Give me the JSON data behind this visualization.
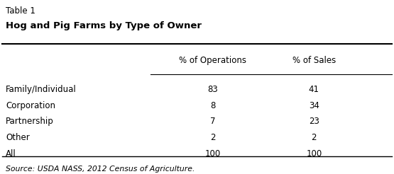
{
  "table_label": "Table 1",
  "title": "Hog and Pig Farms by Type of Owner",
  "col_headers": [
    "% of Operations",
    "% of Sales"
  ],
  "row_labels": [
    "Family/Individual",
    "Corporation",
    "Partnership",
    "Other",
    "All"
  ],
  "col1_values": [
    "83",
    "8",
    "7",
    "2",
    "100"
  ],
  "col2_values": [
    "41",
    "34",
    "23",
    "2",
    "100"
  ],
  "source_text": "Source: USDA NASS, 2012 Census of Agriculture.",
  "bg_color": "#ffffff",
  "text_color": "#000000"
}
